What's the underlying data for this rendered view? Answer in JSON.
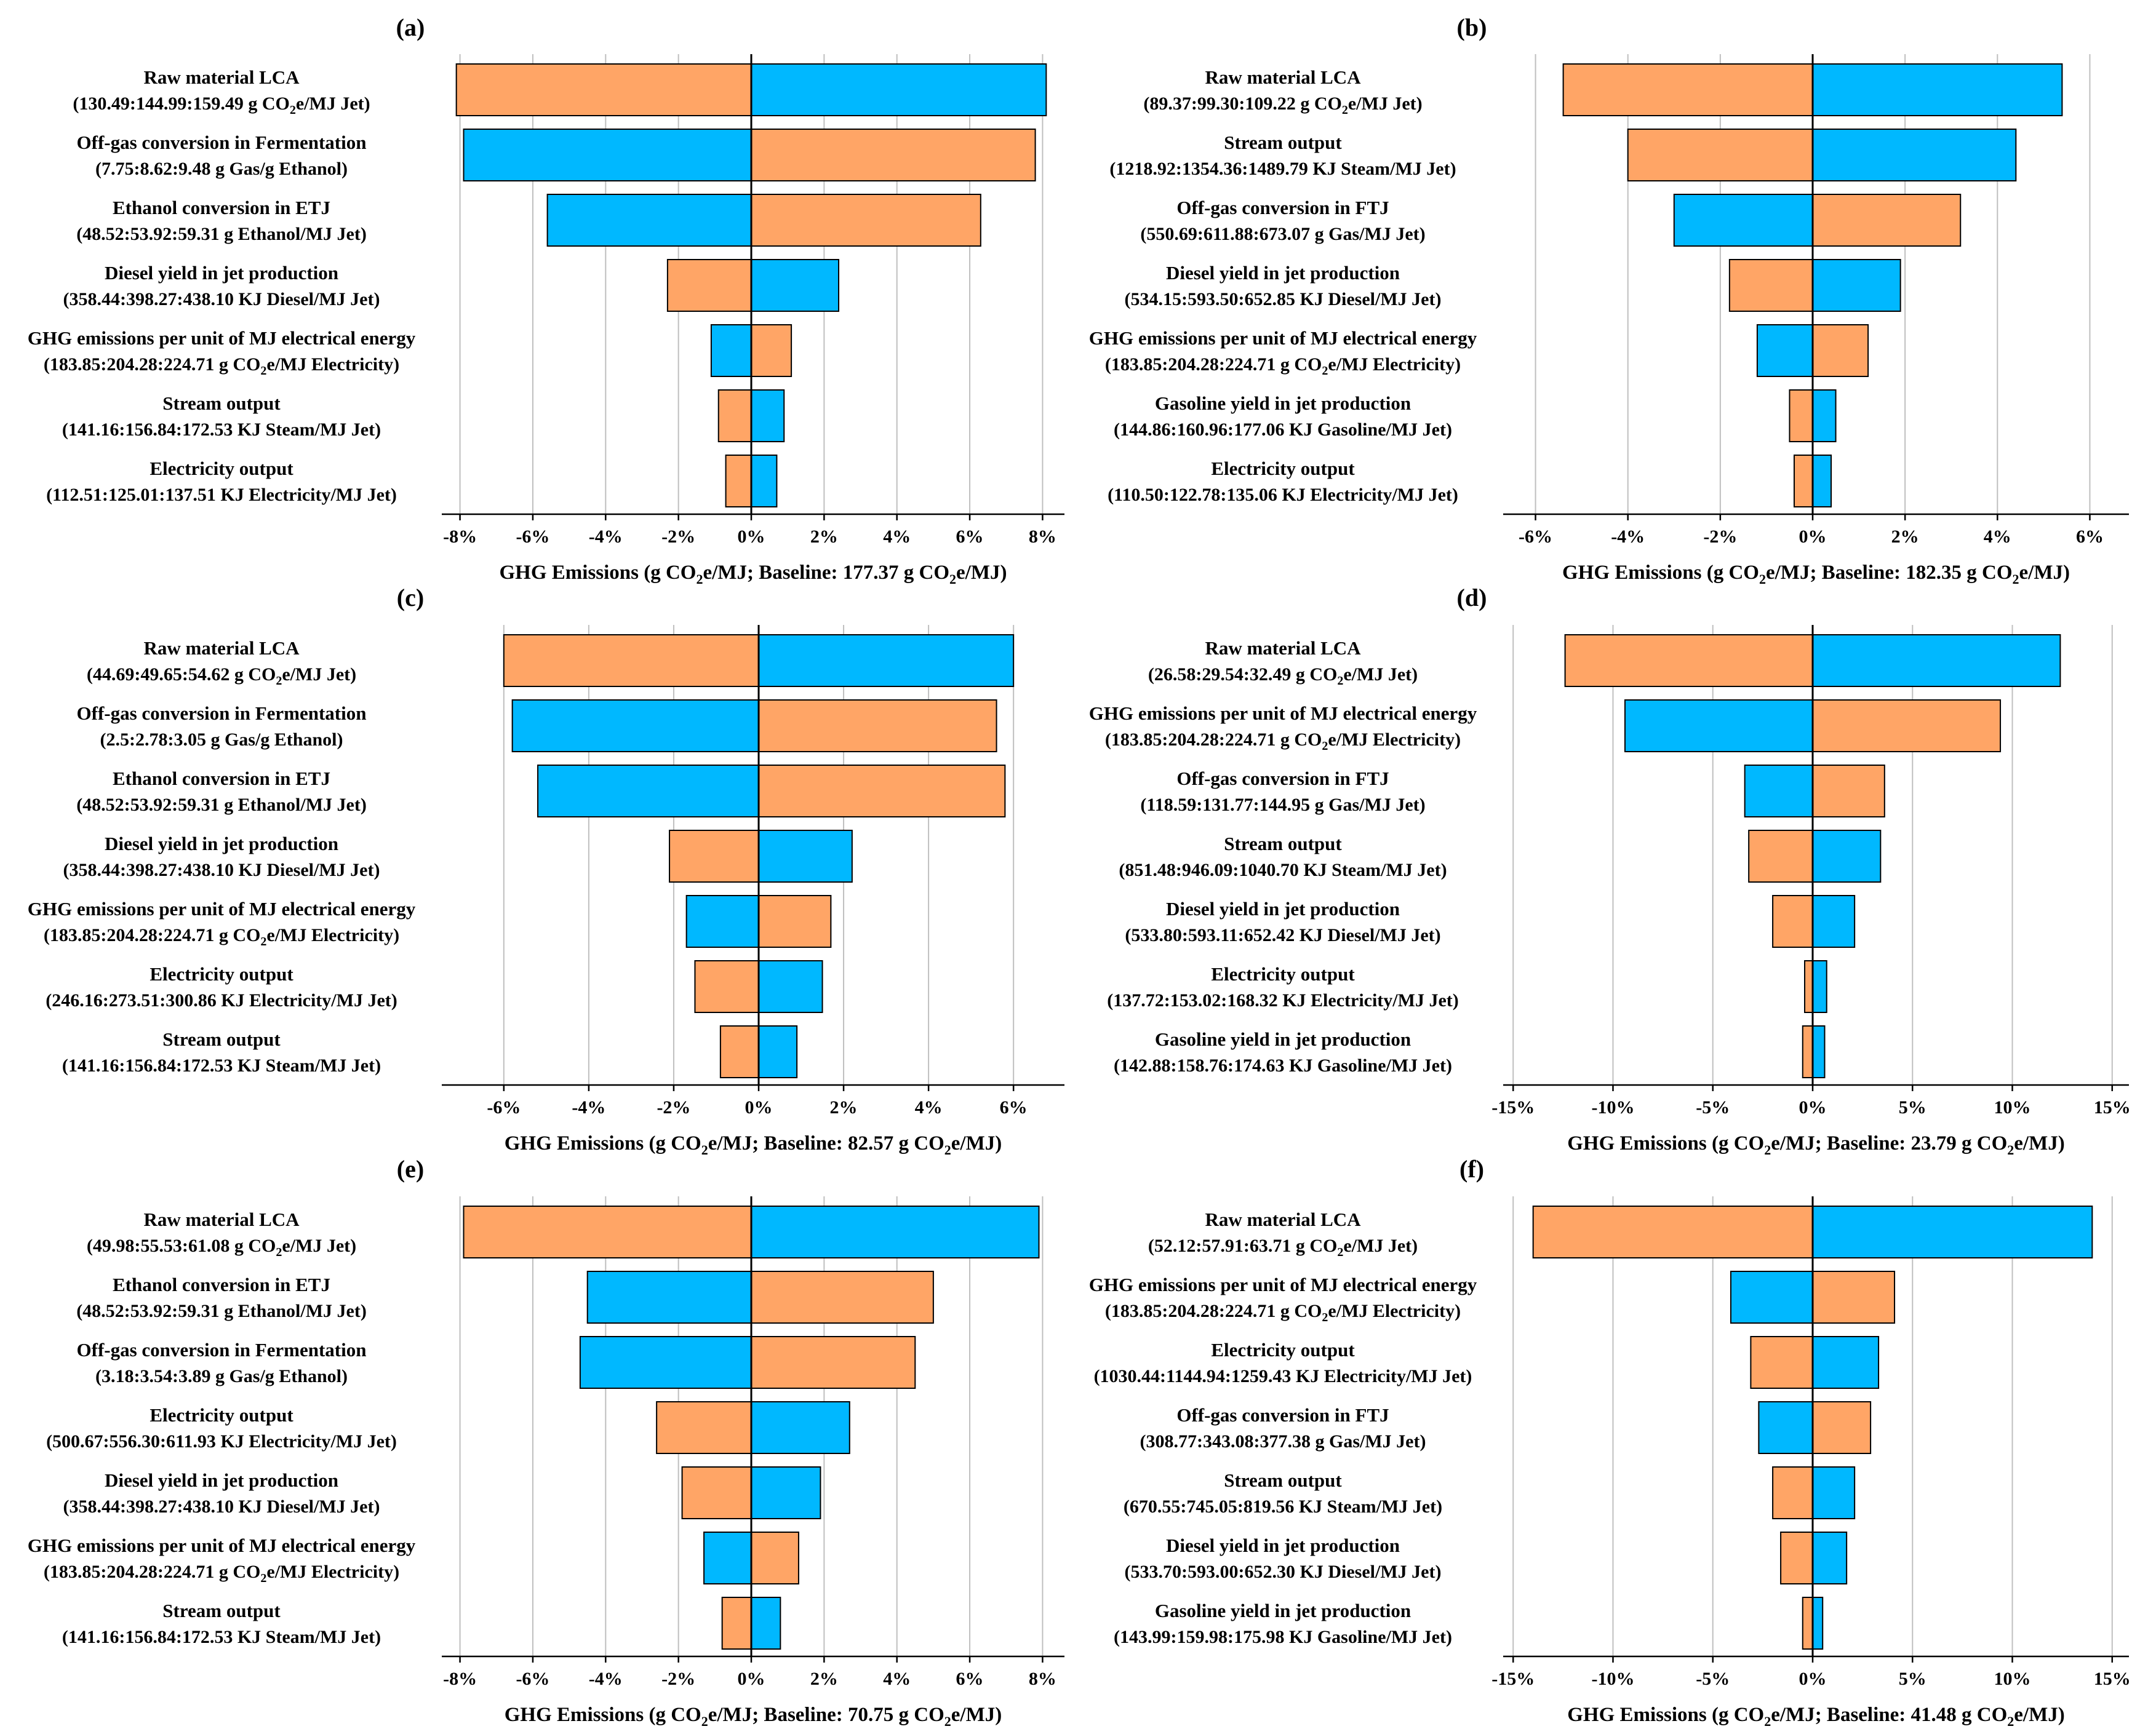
{
  "colors": {
    "low": "#FFA566",
    "high": "#00B8FF",
    "grid": "#BFBFBF",
    "axis": "#000000"
  },
  "chart_data": [
    {
      "type": "bar",
      "panel_label": "(a)",
      "ylim_pct": 8.5,
      "ticks": [
        -8,
        -6,
        -4,
        -2,
        0,
        2,
        4,
        6,
        8
      ],
      "tick_labels": [
        "-8%",
        "-6%",
        "-4%",
        "-2%",
        "0%",
        "2%",
        "4%",
        "6%",
        "8%"
      ],
      "xlabel": {
        "prefix": "GHG Emissions (g CO",
        "mid": "e/MJ; Baseline: 177.37 g CO",
        "suffix": "e/MJ)"
      },
      "bars": [
        {
          "name": "Raw material LCA",
          "range": {
            "pre": "(130.49:144.99:159.49 g CO",
            "post": "e/MJ Jet)"
          },
          "left": -8.1,
          "right": 8.1,
          "left_series": "low"
        },
        {
          "name": "Off-gas conversion in Fermentation",
          "range": {
            "pre": "(7.75:8.62:9.48 g Gas/g Ethanol)",
            "post": ""
          },
          "left": -7.9,
          "right": 7.8,
          "left_series": "high"
        },
        {
          "name": "Ethanol conversion in ETJ",
          "range": {
            "pre": "(48.52:53.92:59.31 g Ethanol/MJ Jet)",
            "post": ""
          },
          "left": -5.6,
          "right": 6.3,
          "left_series": "high"
        },
        {
          "name": "Diesel yield in jet production",
          "range": {
            "pre": "(358.44:398.27:438.10 KJ Diesel/MJ Jet)",
            "post": ""
          },
          "left": -2.3,
          "right": 2.4,
          "left_series": "low"
        },
        {
          "name": "GHG emissions per unit of MJ electrical energy",
          "range": {
            "pre": "(183.85:204.28:224.71 g CO",
            "post": "e/MJ Electricity)"
          },
          "left": -1.1,
          "right": 1.1,
          "left_series": "high"
        },
        {
          "name": "Stream output",
          "range": {
            "pre": "(141.16:156.84:172.53 KJ Steam/MJ Jet)",
            "post": ""
          },
          "left": -0.9,
          "right": 0.9,
          "left_series": "low"
        },
        {
          "name": "Electricity output",
          "range": {
            "pre": "(112.51:125.01:137.51 KJ Electricity/MJ Jet)",
            "post": ""
          },
          "left": -0.7,
          "right": 0.7,
          "left_series": "low"
        }
      ]
    },
    {
      "type": "bar",
      "panel_label": "(b)",
      "ylim_pct": 6.7,
      "ticks": [
        -6,
        -4,
        -2,
        0,
        2,
        4,
        6
      ],
      "tick_labels": [
        "-6%",
        "-4%",
        "-2%",
        "0%",
        "2%",
        "4%",
        "6%"
      ],
      "xlabel": {
        "prefix": "GHG Emissions (g CO",
        "mid": "e/MJ; Baseline: 182.35 g CO",
        "suffix": "e/MJ)"
      },
      "bars": [
        {
          "name": "Raw material LCA",
          "range": {
            "pre": "(89.37:99.30:109.22 g CO",
            "post": "e/MJ Jet)"
          },
          "left": -5.4,
          "right": 5.4,
          "left_series": "low"
        },
        {
          "name": "Stream output",
          "range": {
            "pre": "(1218.92:1354.36:1489.79 KJ Steam/MJ Jet)",
            "post": ""
          },
          "left": -4.0,
          "right": 4.4,
          "left_series": "low"
        },
        {
          "name": "Off-gas conversion in FTJ",
          "range": {
            "pre": "(550.69:611.88:673.07 g Gas/MJ Jet)",
            "post": ""
          },
          "left": -3.0,
          "right": 3.2,
          "left_series": "high"
        },
        {
          "name": "Diesel yield in jet production",
          "range": {
            "pre": "(534.15:593.50:652.85 KJ Diesel/MJ Jet)",
            "post": ""
          },
          "left": -1.8,
          "right": 1.9,
          "left_series": "low"
        },
        {
          "name": "GHG emissions per unit of MJ electrical energy",
          "range": {
            "pre": "(183.85:204.28:224.71 g CO",
            "post": "e/MJ Electricity)"
          },
          "left": -1.2,
          "right": 1.2,
          "left_series": "high"
        },
        {
          "name": "Gasoline yield in jet production",
          "range": {
            "pre": "(144.86:160.96:177.06 KJ Gasoline/MJ Jet)",
            "post": ""
          },
          "left": -0.5,
          "right": 0.5,
          "left_series": "low"
        },
        {
          "name": "Electricity output",
          "range": {
            "pre": "(110.50:122.78:135.06 KJ Electricity/MJ Jet)",
            "post": ""
          },
          "left": -0.4,
          "right": 0.4,
          "left_series": "low"
        }
      ]
    },
    {
      "type": "bar",
      "panel_label": "(c)",
      "ylim_pct": 7.2,
      "ticks": [
        -6,
        -4,
        -2,
        0,
        2,
        4,
        6
      ],
      "tick_labels": [
        "-6%",
        "-4%",
        "-2%",
        "0%",
        "2%",
        "4%",
        "6%"
      ],
      "xlabel": {
        "prefix": "GHG Emissions (g CO",
        "mid": "e/MJ; Baseline: 82.57 g CO",
        "suffix": "e/MJ)"
      },
      "bars": [
        {
          "name": "Raw material LCA",
          "range": {
            "pre": "(44.69:49.65:54.62 g CO",
            "post": "e/MJ Jet)"
          },
          "left": -6.0,
          "right": 6.0,
          "left_series": "low"
        },
        {
          "name": "Off-gas conversion in Fermentation",
          "range": {
            "pre": "(2.5:2.78:3.05 g Gas/g Ethanol)",
            "post": ""
          },
          "left": -5.8,
          "right": 5.6,
          "left_series": "high"
        },
        {
          "name": "Ethanol conversion in ETJ",
          "range": {
            "pre": "(48.52:53.92:59.31 g Ethanol/MJ Jet)",
            "post": ""
          },
          "left": -5.2,
          "right": 5.8,
          "left_series": "high"
        },
        {
          "name": "Diesel yield in jet production",
          "range": {
            "pre": "(358.44:398.27:438.10 KJ Diesel/MJ Jet)",
            "post": ""
          },
          "left": -2.1,
          "right": 2.2,
          "left_series": "low"
        },
        {
          "name": "GHG emissions per unit of MJ electrical energy",
          "range": {
            "pre": "(183.85:204.28:224.71 g CO",
            "post": "e/MJ Electricity)"
          },
          "left": -1.7,
          "right": 1.7,
          "left_series": "high"
        },
        {
          "name": "Electricity output",
          "range": {
            "pre": "(246.16:273.51:300.86 KJ Electricity/MJ Jet)",
            "post": ""
          },
          "left": -1.5,
          "right": 1.5,
          "left_series": "low"
        },
        {
          "name": "Stream output",
          "range": {
            "pre": "(141.16:156.84:172.53 KJ Steam/MJ Jet)",
            "post": ""
          },
          "left": -0.9,
          "right": 0.9,
          "left_series": "low"
        }
      ]
    },
    {
      "type": "bar",
      "panel_label": "(d)",
      "ylim_pct": 15.5,
      "ticks": [
        -15,
        -10,
        -5,
        0,
        5,
        10,
        15
      ],
      "tick_labels": [
        "-15%",
        "-10%",
        "-5%",
        "0%",
        "5%",
        "10%",
        "15%"
      ],
      "xlabel": {
        "prefix": "GHG Emissions (g CO",
        "mid": "e/MJ; Baseline: 23.79 g CO",
        "suffix": "e/MJ)"
      },
      "bars": [
        {
          "name": "Raw material LCA",
          "range": {
            "pre": "(26.58:29.54:32.49 g CO",
            "post": "e/MJ Jet)"
          },
          "left": -12.4,
          "right": 12.4,
          "left_series": "low"
        },
        {
          "name": "GHG emissions per unit of MJ electrical energy",
          "range": {
            "pre": "(183.85:204.28:224.71 g CO",
            "post": "e/MJ Electricity)"
          },
          "left": -9.4,
          "right": 9.4,
          "left_series": "high"
        },
        {
          "name": "Off-gas conversion in FTJ",
          "range": {
            "pre": "(118.59:131.77:144.95 g Gas/MJ Jet)",
            "post": ""
          },
          "left": -3.4,
          "right": 3.6,
          "left_series": "high"
        },
        {
          "name": "Stream output",
          "range": {
            "pre": "(851.48:946.09:1040.70 KJ Steam/MJ Jet)",
            "post": ""
          },
          "left": -3.2,
          "right": 3.4,
          "left_series": "low"
        },
        {
          "name": "Diesel yield in jet production",
          "range": {
            "pre": "(533.80:593.11:652.42 KJ Diesel/MJ Jet)",
            "post": ""
          },
          "left": -2.0,
          "right": 2.1,
          "left_series": "low"
        },
        {
          "name": "Electricity output",
          "range": {
            "pre": "(137.72:153.02:168.32 KJ Electricity/MJ Jet)",
            "post": ""
          },
          "left": -0.4,
          "right": 0.7,
          "left_series": "low"
        },
        {
          "name": "Gasoline yield in jet production",
          "range": {
            "pre": "(142.88:158.76:174.63 KJ Gasoline/MJ Jet)",
            "post": ""
          },
          "left": -0.5,
          "right": 0.6,
          "left_series": "low"
        }
      ]
    },
    {
      "type": "bar",
      "panel_label": "(e)",
      "ylim_pct": 8.5,
      "ticks": [
        -8,
        -6,
        -4,
        -2,
        0,
        2,
        4,
        6,
        8
      ],
      "tick_labels": [
        "-8%",
        "-6%",
        "-4%",
        "-2%",
        "0%",
        "2%",
        "4%",
        "6%",
        "8%"
      ],
      "xlabel": {
        "prefix": "GHG Emissions (g CO",
        "mid": "e/MJ; Baseline: 70.75 g CO",
        "suffix": "e/MJ)"
      },
      "bars": [
        {
          "name": "Raw material LCA",
          "range": {
            "pre": "(49.98:55.53:61.08 g CO",
            "post": "e/MJ Jet)"
          },
          "left": -7.9,
          "right": 7.9,
          "left_series": "low"
        },
        {
          "name": "Ethanol conversion in ETJ",
          "range": {
            "pre": "(48.52:53.92:59.31 g Ethanol/MJ Jet)",
            "post": ""
          },
          "left": -4.5,
          "right": 5.0,
          "left_series": "high"
        },
        {
          "name": "Off-gas conversion in Fermentation",
          "range": {
            "pre": "(3.18:3.54:3.89 g Gas/g Ethanol)",
            "post": ""
          },
          "left": -4.7,
          "right": 4.5,
          "left_series": "high"
        },
        {
          "name": "Electricity output",
          "range": {
            "pre": "(500.67:556.30:611.93 KJ Electricity/MJ Jet)",
            "post": ""
          },
          "left": -2.6,
          "right": 2.7,
          "left_series": "low"
        },
        {
          "name": "Diesel yield in jet production",
          "range": {
            "pre": "(358.44:398.27:438.10 KJ Diesel/MJ Jet)",
            "post": ""
          },
          "left": -1.9,
          "right": 1.9,
          "left_series": "low"
        },
        {
          "name": "GHG emissions per unit of MJ electrical energy",
          "range": {
            "pre": "(183.85:204.28:224.71 g CO",
            "post": "e/MJ Electricity)"
          },
          "left": -1.3,
          "right": 1.3,
          "left_series": "high"
        },
        {
          "name": "Stream output",
          "range": {
            "pre": "(141.16:156.84:172.53 KJ Steam/MJ Jet)",
            "post": ""
          },
          "left": -0.8,
          "right": 0.8,
          "left_series": "low"
        }
      ]
    },
    {
      "type": "bar",
      "panel_label": "(f)",
      "ylim_pct": 15.5,
      "ticks": [
        -15,
        -10,
        -5,
        0,
        5,
        10,
        15
      ],
      "tick_labels": [
        "-15%",
        "-10%",
        "-5%",
        "0%",
        "5%",
        "10%",
        "15%"
      ],
      "xlabel": {
        "prefix": "GHG Emissions (g CO",
        "mid": "e/MJ; Baseline: 41.48 g CO",
        "suffix": "e/MJ)"
      },
      "bars": [
        {
          "name": "Raw material LCA",
          "range": {
            "pre": "(52.12:57.91:63.71 g CO",
            "post": "e/MJ Jet)"
          },
          "left": -14.0,
          "right": 14.0,
          "left_series": "low"
        },
        {
          "name": "GHG emissions per unit of MJ electrical energy",
          "range": {
            "pre": "(183.85:204.28:224.71 g CO",
            "post": "e/MJ Electricity)"
          },
          "left": -4.1,
          "right": 4.1,
          "left_series": "high"
        },
        {
          "name": "Electricity output",
          "range": {
            "pre": "(1030.44:1144.94:1259.43 KJ Electricity/MJ Jet)",
            "post": ""
          },
          "left": -3.1,
          "right": 3.3,
          "left_series": "low"
        },
        {
          "name": "Off-gas conversion in FTJ",
          "range": {
            "pre": "(308.77:343.08:377.38 g Gas/MJ Jet)",
            "post": ""
          },
          "left": -2.7,
          "right": 2.9,
          "left_series": "high"
        },
        {
          "name": "Stream output",
          "range": {
            "pre": "(670.55:745.05:819.56 KJ Steam/MJ Jet)",
            "post": ""
          },
          "left": -2.0,
          "right": 2.1,
          "left_series": "low"
        },
        {
          "name": "Diesel yield in jet production",
          "range": {
            "pre": "(533.70:593.00:652.30 KJ Diesel/MJ Jet)",
            "post": ""
          },
          "left": -1.6,
          "right": 1.7,
          "left_series": "low"
        },
        {
          "name": "Gasoline yield in jet production",
          "range": {
            "pre": "(143.99:159.98:175.98 KJ Gasoline/MJ Jet)",
            "post": ""
          },
          "left": -0.5,
          "right": 0.5,
          "left_series": "low"
        }
      ]
    }
  ]
}
